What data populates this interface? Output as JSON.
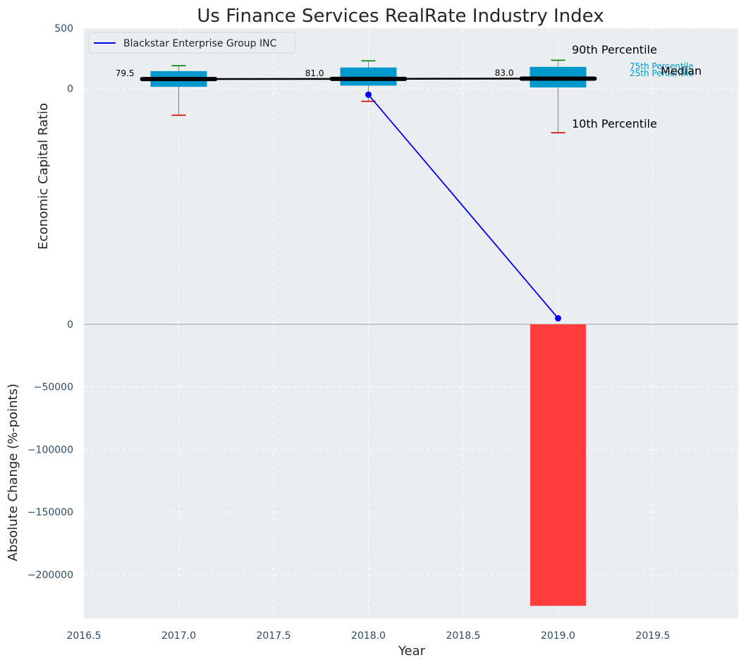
{
  "chart_data": {
    "type": "bar",
    "title": "Us Finance Services RealRate Industry Index",
    "xlabel": "Year",
    "top_ylabel": "Economic Capital Ratio",
    "bottom_ylabel": "Absolute Change (%-points)",
    "grid": true,
    "legend": {
      "placement": "top-left",
      "entries": [
        "Blackstar Enterprise Group INC"
      ]
    },
    "x_ticks": [
      "2016.5",
      "2017.0",
      "2017.5",
      "2018.0",
      "2018.5",
      "2019.0",
      "2019.5"
    ],
    "x_tick_values": [
      2016.5,
      2017.0,
      2017.5,
      2018.0,
      2018.5,
      2019.0,
      2019.5
    ],
    "xlim": [
      2016.5,
      2019.95
    ],
    "top_panel": {
      "ylim": [
        -1950,
        500
      ],
      "y_ticks": [
        "500",
        "0"
      ],
      "y_tick_values": [
        500,
        0
      ],
      "boxes": [
        {
          "x": 2017.0,
          "p10": -220,
          "p25": 15,
          "median": 79.5,
          "p75": 145,
          "p90": 190,
          "median_label": "79.5"
        },
        {
          "x": 2018.0,
          "p10": -105,
          "p25": 25,
          "median": 81.0,
          "p75": 175,
          "p90": 230,
          "median_label": "81.0"
        },
        {
          "x": 2019.0,
          "p10": -365,
          "p25": 10,
          "median": 83.0,
          "p75": 180,
          "p90": 235,
          "median_label": "83.0"
        }
      ],
      "series": [
        {
          "name": "Blackstar Enterprise Group INC",
          "x": [
            2018.0,
            2019.0
          ],
          "y": [
            -50,
            -1900
          ],
          "color": "#0000ff"
        }
      ],
      "annotations": {
        "p90": "90th Percentile",
        "p75": "75th Percentile",
        "median": "Median",
        "p25": "25th Percentile",
        "p10": "10th Percentile"
      }
    },
    "bottom_panel": {
      "ylim": [
        -235000,
        0
      ],
      "y_ticks": [
        "0",
        "−50000",
        "−100000",
        "−150000",
        "−200000"
      ],
      "y_tick_values": [
        0,
        -50000,
        -100000,
        -150000,
        -200000
      ],
      "bars": [
        {
          "x": 2019.0,
          "value": -225000,
          "color": "#ff3c3c"
        }
      ]
    },
    "colors": {
      "box": "#0099cc",
      "median_line": "#000000",
      "p90_cap": "#008000",
      "p10_cap": "#cc0000",
      "whisker": "#808080",
      "panel_bg": "#eaeef0",
      "annotation_box": "#0099cc"
    }
  }
}
